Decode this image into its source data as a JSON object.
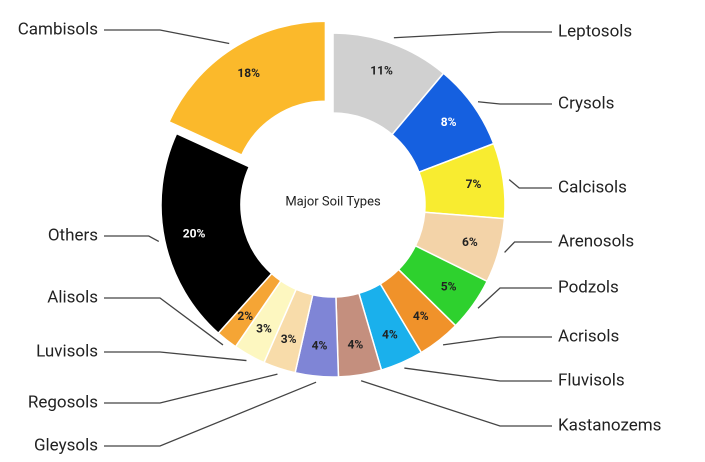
{
  "chart_data": {
    "type": "donut",
    "center_label": "Major Soil Types",
    "categories": [
      "Leptosols",
      "Crysols",
      "Calcisols",
      "Arenosols",
      "Podzols",
      "Acrisols",
      "Fluvisols",
      "Kastanozems",
      "Gleysols",
      "Regosols",
      "Luvisols",
      "Alisols",
      "Others",
      "Cambisols"
    ],
    "values": [
      11,
      8,
      7,
      6,
      5,
      4,
      4,
      4,
      4,
      3,
      3,
      2,
      20,
      18
    ],
    "value_labels": [
      "11%",
      "8%",
      "7%",
      "6%",
      "5%",
      "4%",
      "4%",
      "4%",
      "4%",
      "3%",
      "3%",
      "2%",
      "20%",
      "18%"
    ],
    "colors": [
      "#d0d0d0",
      "#1560e0",
      "#f8ec30",
      "#f3d3a8",
      "#2ed12e",
      "#f0922a",
      "#1ab0ec",
      "#c48f7e",
      "#7f85d6",
      "#f8dcaa",
      "#fdf7c0",
      "#f5a535",
      "#000000",
      "#fbb92b"
    ]
  }
}
